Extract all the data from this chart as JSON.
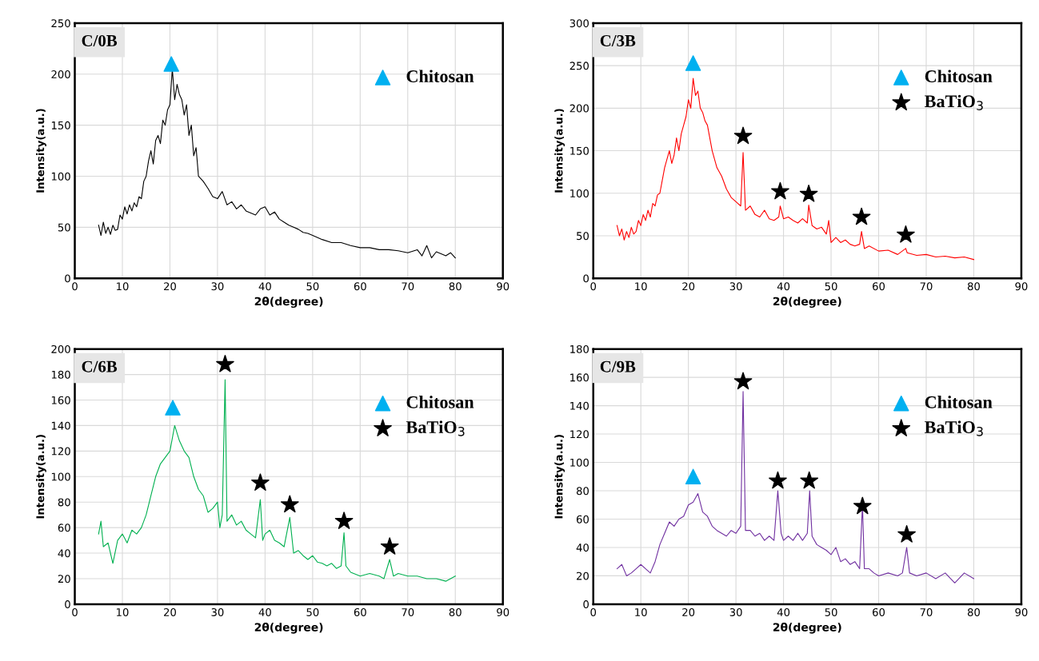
{
  "chart_data": [
    {
      "type": "line",
      "title": "C/0B",
      "xlabel": "2θ(degree)",
      "ylabel": "Intensity(a.u.)",
      "xlim": [
        0,
        90
      ],
      "xticks": [
        0,
        10,
        20,
        30,
        40,
        50,
        60,
        70,
        80,
        90
      ],
      "ylim": [
        0,
        250
      ],
      "yticks": [
        0,
        50,
        100,
        150,
        200,
        250
      ],
      "grid": true,
      "legend": "top right",
      "series": [
        {
          "color": "#000000",
          "x": [
            5,
            5.5,
            6,
            6.5,
            7,
            7.5,
            8,
            8.5,
            9,
            9.5,
            10,
            10.5,
            11,
            11.5,
            12,
            12.5,
            13,
            13.5,
            14,
            14.5,
            15,
            15.5,
            16,
            16.5,
            17,
            17.5,
            18,
            18.5,
            19,
            19.5,
            20,
            20.5,
            21,
            21.5,
            22,
            22.5,
            23,
            23.5,
            24,
            24.5,
            25,
            25.5,
            26,
            27,
            28,
            29,
            30,
            31,
            32,
            33,
            34,
            35,
            36,
            37,
            38,
            39,
            40,
            41,
            42,
            43,
            44,
            45,
            46,
            47,
            48,
            49,
            50,
            52,
            54,
            56,
            58,
            60,
            62,
            64,
            66,
            68,
            70,
            72,
            73,
            74,
            75,
            76,
            77,
            78,
            79,
            80
          ],
          "values": [
            52,
            42,
            55,
            44,
            50,
            43,
            52,
            47,
            48,
            62,
            58,
            70,
            63,
            72,
            66,
            74,
            70,
            80,
            78,
            95,
            100,
            115,
            125,
            112,
            135,
            140,
            132,
            155,
            150,
            165,
            170,
            205,
            175,
            190,
            180,
            175,
            160,
            170,
            140,
            150,
            120,
            128,
            100,
            95,
            88,
            80,
            78,
            85,
            72,
            75,
            68,
            72,
            66,
            64,
            62,
            68,
            70,
            62,
            65,
            58,
            55,
            52,
            50,
            48,
            45,
            44,
            42,
            38,
            35,
            35,
            32,
            30,
            30,
            28,
            28,
            27,
            25,
            28,
            22,
            32,
            20,
            26,
            24,
            22,
            25,
            20
          ]
        },
        {
          "type": "scatter",
          "name": "Chitosan",
          "marker": "triangle",
          "color": "#00b0f0",
          "x": [
            20.3
          ],
          "values": [
            210
          ]
        }
      ]
    },
    {
      "type": "line",
      "title": "C/3B",
      "xlabel": "2θ(degree)",
      "ylabel": "Intensity(a.u.)",
      "xlim": [
        0,
        90
      ],
      "xticks": [
        0,
        10,
        20,
        30,
        40,
        50,
        60,
        70,
        80,
        90
      ],
      "ylim": [
        0,
        300
      ],
      "yticks": [
        0,
        50,
        100,
        150,
        200,
        250,
        300
      ],
      "grid": true,
      "legend": "top right",
      "series": [
        {
          "color": "#ff0000",
          "x": [
            5,
            5.5,
            6,
            6.5,
            7,
            7.5,
            8,
            8.5,
            9,
            9.5,
            10,
            10.5,
            11,
            11.5,
            12,
            12.5,
            13,
            13.5,
            14,
            14.5,
            15,
            15.5,
            16,
            16.5,
            17,
            17.5,
            18,
            18.5,
            19,
            19.5,
            20,
            20.5,
            21,
            21.5,
            22,
            22.5,
            23,
            23.5,
            24,
            24.5,
            25,
            26,
            27,
            28,
            29,
            30,
            31,
            31.5,
            32,
            33,
            34,
            35,
            36,
            37,
            38,
            39,
            39.3,
            40,
            41,
            42,
            43,
            44,
            45,
            45.3,
            46,
            47,
            48,
            49,
            49.5,
            50,
            51,
            52,
            53,
            54,
            55,
            56,
            56.4,
            57,
            58,
            60,
            62,
            64,
            65.7,
            66,
            68,
            70,
            72,
            74,
            76,
            78,
            80
          ],
          "values": [
            62,
            50,
            58,
            45,
            55,
            48,
            60,
            52,
            55,
            68,
            62,
            75,
            68,
            80,
            72,
            88,
            85,
            98,
            100,
            115,
            130,
            140,
            150,
            135,
            145,
            165,
            150,
            170,
            180,
            190,
            210,
            200,
            235,
            215,
            220,
            200,
            195,
            185,
            180,
            165,
            150,
            130,
            120,
            105,
            95,
            90,
            85,
            148,
            80,
            85,
            75,
            72,
            80,
            70,
            68,
            72,
            85,
            70,
            72,
            68,
            65,
            70,
            65,
            86,
            62,
            58,
            60,
            52,
            68,
            42,
            48,
            42,
            45,
            40,
            38,
            40,
            55,
            35,
            38,
            32,
            33,
            28,
            35,
            30,
            27,
            28,
            25,
            26,
            24,
            25,
            22
          ]
        },
        {
          "type": "scatter",
          "name": "Chitosan",
          "marker": "triangle",
          "color": "#00b0f0",
          "x": [
            21
          ],
          "values": [
            253
          ]
        },
        {
          "type": "scatter",
          "name": "BaTiO$_{3}$",
          "marker": "star",
          "color": "#000000",
          "x": [
            31.5,
            39.3,
            45.3,
            56.4,
            65.7
          ],
          "values": [
            167,
            102,
            99,
            72,
            51
          ]
        }
      ]
    },
    {
      "type": "line",
      "title": "C/6B",
      "xlabel": "2θ(degree)",
      "ylabel": "Intensity(a.u.)",
      "xlim": [
        0,
        90
      ],
      "xticks": [
        0,
        10,
        20,
        30,
        40,
        50,
        60,
        70,
        80,
        90
      ],
      "ylim": [
        0,
        200
      ],
      "yticks": [
        0,
        20,
        40,
        60,
        80,
        100,
        120,
        140,
        160,
        180,
        200
      ],
      "grid": true,
      "legend": "top right",
      "series": [
        {
          "color": "#00b050",
          "x": [
            5,
            5.5,
            6,
            7,
            8,
            9,
            10,
            11,
            12,
            13,
            14,
            15,
            16,
            17,
            18,
            19,
            20,
            20.5,
            21,
            22,
            23,
            24,
            25,
            26,
            27,
            28,
            29,
            30,
            30.5,
            31,
            31.6,
            32,
            33,
            34,
            35,
            36,
            37,
            38,
            39,
            39.5,
            40,
            41,
            42,
            43,
            44,
            45.2,
            46,
            47,
            48,
            49,
            50,
            51,
            52,
            53,
            54,
            55,
            56,
            56.6,
            57,
            58,
            60,
            62,
            64,
            65,
            66.2,
            67,
            68,
            70,
            72,
            74,
            76,
            78,
            80
          ],
          "values": [
            55,
            65,
            45,
            48,
            32,
            50,
            55,
            48,
            58,
            55,
            60,
            70,
            85,
            100,
            110,
            115,
            120,
            130,
            140,
            128,
            120,
            115,
            100,
            90,
            85,
            72,
            75,
            80,
            60,
            70,
            176,
            65,
            70,
            62,
            65,
            58,
            55,
            52,
            82,
            50,
            55,
            58,
            50,
            48,
            45,
            68,
            40,
            42,
            38,
            35,
            38,
            33,
            32,
            30,
            32,
            28,
            30,
            56,
            30,
            25,
            22,
            24,
            22,
            20,
            35,
            22,
            24,
            22,
            22,
            20,
            20,
            18,
            22
          ]
        },
        {
          "type": "scatter",
          "name": "Chitosan",
          "marker": "triangle",
          "color": "#00b0f0",
          "x": [
            20.6
          ],
          "values": [
            154
          ]
        },
        {
          "type": "scatter",
          "name": "BaTiO$_{3}$",
          "marker": "star",
          "color": "#000000",
          "x": [
            31.6,
            39,
            45.2,
            56.6,
            66.2
          ],
          "values": [
            188,
            95,
            78,
            65,
            45
          ]
        }
      ]
    },
    {
      "type": "line",
      "title": "C/9B",
      "xlabel": "2θ(degree)",
      "ylabel": "Intensity(a.u.)",
      "xlim": [
        0,
        90
      ],
      "xticks": [
        0,
        10,
        20,
        30,
        40,
        50,
        60,
        70,
        80,
        90
      ],
      "ylim": [
        0,
        180
      ],
      "yticks": [
        0,
        20,
        40,
        60,
        80,
        100,
        120,
        140,
        160,
        180
      ],
      "grid": true,
      "legend": "top right",
      "series": [
        {
          "color": "#7030a0",
          "x": [
            5,
            6,
            7,
            8,
            9,
            10,
            11,
            12,
            13,
            14,
            15,
            16,
            17,
            18,
            19,
            20,
            21,
            22,
            23,
            24,
            25,
            26,
            27,
            28,
            29,
            30,
            31,
            31.5,
            32,
            33,
            34,
            35,
            36,
            37,
            38,
            38.8,
            39.5,
            40,
            41,
            42,
            43,
            44,
            45,
            45.5,
            46,
            47,
            48,
            49,
            50,
            51,
            52,
            53,
            54,
            55,
            56,
            56.6,
            57,
            58,
            59,
            60,
            62,
            64,
            65,
            65.9,
            66.5,
            68,
            70,
            72,
            74,
            76,
            78,
            80
          ],
          "values": [
            25,
            28,
            20,
            22,
            25,
            28,
            25,
            22,
            30,
            42,
            50,
            58,
            55,
            60,
            62,
            70,
            72,
            78,
            65,
            62,
            55,
            52,
            50,
            48,
            52,
            50,
            55,
            150,
            52,
            52,
            48,
            50,
            45,
            48,
            45,
            80,
            50,
            45,
            48,
            45,
            50,
            45,
            50,
            80,
            48,
            42,
            40,
            38,
            35,
            40,
            30,
            32,
            28,
            30,
            25,
            70,
            25,
            25,
            22,
            20,
            22,
            20,
            22,
            40,
            22,
            20,
            22,
            18,
            22,
            15,
            22,
            18
          ]
        },
        {
          "type": "scatter",
          "name": "Chitosan",
          "marker": "triangle",
          "color": "#00b0f0",
          "x": [
            21
          ],
          "values": [
            90
          ]
        },
        {
          "type": "scatter",
          "name": "BaTiO$_{3}$",
          "marker": "star",
          "color": "#000000",
          "x": [
            31.5,
            38.8,
            45.4,
            56.6,
            65.9
          ],
          "values": [
            157,
            87,
            87,
            69,
            49
          ]
        }
      ]
    }
  ]
}
